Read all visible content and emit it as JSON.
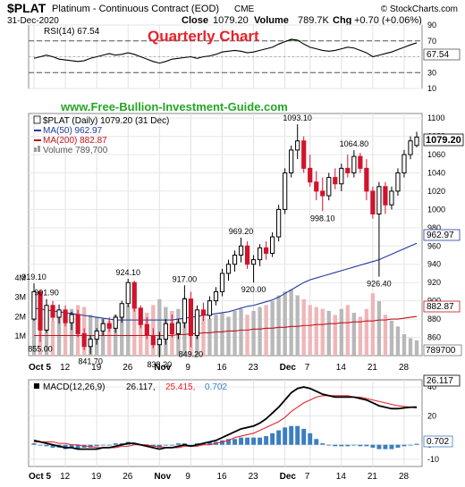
{
  "header": {
    "symbol": "$PLAT",
    "name": "Platinum - Continuous Contract (EOD)",
    "exchange": "CME",
    "watermark": "© StockCharts.com",
    "date": "31-Dec-2020",
    "close_label": "Close",
    "close_value": "1079.20",
    "volume_label": "Volume",
    "volume_value": "789.7K",
    "chg_label": "Chg",
    "chg_value": "+0.70 (+0.06%)"
  },
  "annotation_title": "Quarterly Chart",
  "website": "www.Free-Bullion-Investment-Guide.com",
  "rsi_panel": {
    "label": "RSI(14) 67.54",
    "ticks": [
      "90",
      "70",
      "50",
      "30",
      "10"
    ],
    "last_value": "67.54"
  },
  "price_panel": {
    "legend_title": "$PLAT (Daily) 1079.20 (31 Dec)",
    "ma50_label": "MA(50) 962.97",
    "ma200_label": "MA(200) 882.87",
    "volume_label": "Volume 789,700",
    "y_ticks": [
      "1100",
      "1080",
      "1060",
      "1040",
      "1020",
      "1000",
      "980",
      "960",
      "940",
      "920",
      "900",
      "880",
      "860"
    ],
    "last_price_label": "1079.20",
    "ma50_last_label": "962.97",
    "ma200_last_label": "882.87",
    "volume_last_label": "789700",
    "volume_ticks": [
      "4M",
      "3M",
      "2M",
      "1M"
    ],
    "annotations": [
      {
        "text": "919.10",
        "index": 0,
        "pos": "above"
      },
      {
        "text": "901.90",
        "index": 2,
        "pos": "above"
      },
      {
        "text": "855.00",
        "index": 1,
        "pos": "below"
      },
      {
        "text": "841.70",
        "index": 9,
        "pos": "below"
      },
      {
        "text": "924.10",
        "index": 15,
        "pos": "above"
      },
      {
        "text": "917.00",
        "index": 24,
        "pos": "above"
      },
      {
        "text": "838.20",
        "index": 20,
        "pos": "below"
      },
      {
        "text": "849.20",
        "index": 25,
        "pos": "below"
      },
      {
        "text": "969.20",
        "index": 33,
        "pos": "above"
      },
      {
        "text": "920.00",
        "index": 35,
        "pos": "below"
      },
      {
        "text": "1093.10",
        "index": 42,
        "pos": "above"
      },
      {
        "text": "998.10",
        "index": 46,
        "pos": "below"
      },
      {
        "text": "1064.80",
        "index": 51,
        "pos": "above"
      },
      {
        "text": "926.40",
        "index": 55,
        "pos": "below"
      }
    ]
  },
  "macd_panel": {
    "label_prefix": "MACD(12,26,9)",
    "macd_value": "26.117,",
    "signal_value": "25.415,",
    "hist_value": "0.702",
    "ticks": [
      "40",
      "20",
      "0",
      "-10"
    ],
    "macd_last_label": "26.117",
    "hist_last_label": "0.702"
  },
  "x_axis": {
    "labels": [
      {
        "text": "Oct 5",
        "index": 0
      },
      {
        "text": "12",
        "index": 5
      },
      {
        "text": "19",
        "index": 10
      },
      {
        "text": "26",
        "index": 15
      },
      {
        "text": "Nov",
        "index": 20
      },
      {
        "text": "9",
        "index": 25
      },
      {
        "text": "16",
        "index": 30
      },
      {
        "text": "23",
        "index": 35
      },
      {
        "text": "Dec",
        "index": 40
      },
      {
        "text": "7",
        "index": 44
      },
      {
        "text": "14",
        "index": 49
      },
      {
        "text": "21",
        "index": 54
      },
      {
        "text": "28",
        "index": 59
      }
    ]
  },
  "colors": {
    "up": "#000000",
    "down": "#d0142c",
    "ma50": "#1f3a9e",
    "ma200": "#c0141c",
    "annotation_red": "#e8222a",
    "website_green": "#22a822",
    "macd_line": "#000000",
    "signal_line": "#e8222a",
    "hist": "#3a7fc1"
  },
  "chart_data": [
    {
      "type": "line",
      "title": "RSI(14) 67.54",
      "series": [
        {
          "name": "RSI(14)",
          "values": [
            48,
            50,
            52,
            50,
            47,
            46,
            45,
            44,
            45,
            48,
            50,
            52,
            54,
            52,
            53,
            55,
            53,
            50,
            47,
            44,
            42,
            44,
            47,
            48,
            49,
            50,
            48,
            50,
            51,
            53,
            56,
            57,
            58,
            57,
            55,
            56,
            58,
            60,
            62,
            66,
            69,
            72,
            71,
            66,
            62,
            60,
            58,
            57,
            58,
            60,
            62,
            61,
            58,
            55,
            50,
            52,
            54,
            56,
            59,
            62,
            65,
            67.54
          ]
        }
      ],
      "ylim": [
        10,
        90
      ],
      "reference_lines": [
        70,
        30
      ]
    },
    {
      "type": "candlestick",
      "title": "$PLAT (Daily) 1079.20 (31 Dec)",
      "ohlc": [
        [
          880,
          919.1,
          878,
          910
        ],
        [
          910,
          912,
          855,
          868
        ],
        [
          868,
          901.9,
          865,
          895
        ],
        [
          895,
          900,
          878,
          882
        ],
        [
          882,
          896,
          875,
          890
        ],
        [
          890,
          895,
          872,
          876
        ],
        [
          876,
          888,
          868,
          885
        ],
        [
          885,
          890,
          860,
          864
        ],
        [
          864,
          870,
          846,
          850
        ],
        [
          850,
          862,
          841.7,
          858
        ],
        [
          858,
          870,
          852,
          867
        ],
        [
          867,
          880,
          862,
          875
        ],
        [
          875,
          882,
          866,
          870
        ],
        [
          870,
          885,
          865,
          882
        ],
        [
          882,
          900,
          876,
          897
        ],
        [
          897,
          924.1,
          893,
          920
        ],
        [
          920,
          922,
          888,
          892
        ],
        [
          892,
          895,
          870,
          874
        ],
        [
          874,
          882,
          858,
          862
        ],
        [
          862,
          870,
          848,
          852
        ],
        [
          852,
          866,
          838.2,
          858
        ],
        [
          858,
          880,
          852,
          875
        ],
        [
          875,
          885,
          860,
          864
        ],
        [
          864,
          880,
          858,
          876
        ],
        [
          876,
          917,
          870,
          902
        ],
        [
          902,
          910,
          849.2,
          862
        ],
        [
          862,
          895,
          858,
          890
        ],
        [
          890,
          898,
          878,
          884
        ],
        [
          884,
          905,
          880,
          900
        ],
        [
          900,
          915,
          895,
          910
        ],
        [
          910,
          935,
          905,
          930
        ],
        [
          930,
          945,
          922,
          940
        ],
        [
          940,
          955,
          932,
          950
        ],
        [
          950,
          969.2,
          942,
          960
        ],
        [
          960,
          965,
          935,
          940
        ],
        [
          940,
          950,
          920,
          945
        ],
        [
          945,
          962,
          938,
          958
        ],
        [
          958,
          965,
          945,
          952
        ],
        [
          952,
          975,
          948,
          970
        ],
        [
          970,
          1005,
          965,
          1000
        ],
        [
          1000,
          1045,
          995,
          1040
        ],
        [
          1040,
          1070,
          1035,
          1065
        ],
        [
          1065,
          1093.1,
          1055,
          1075
        ],
        [
          1075,
          1080,
          1040,
          1045
        ],
        [
          1045,
          1060,
          1025,
          1030
        ],
        [
          1030,
          1042,
          1010,
          1020
        ],
        [
          1020,
          1035,
          998.1,
          1015
        ],
        [
          1015,
          1040,
          1010,
          1035
        ],
        [
          1035,
          1045,
          1022,
          1028
        ],
        [
          1028,
          1050,
          1020,
          1045
        ],
        [
          1045,
          1060,
          1035,
          1040
        ],
        [
          1040,
          1064.8,
          1035,
          1058
        ],
        [
          1058,
          1062,
          1040,
          1045
        ],
        [
          1045,
          1055,
          1010,
          1020
        ],
        [
          1020,
          1025,
          990,
          995
        ],
        [
          995,
          1030,
          926.4,
          1025
        ],
        [
          1025,
          1030,
          995,
          1005
        ],
        [
          1005,
          1025,
          1000,
          1020
        ],
        [
          1020,
          1045,
          1015,
          1040
        ],
        [
          1040,
          1065,
          1035,
          1060
        ],
        [
          1060,
          1080,
          1055,
          1075
        ],
        [
          1070,
          1085,
          1068,
          1079.2
        ]
      ],
      "ma50": [
        892,
        891,
        890,
        889,
        888,
        887,
        886,
        885,
        884,
        883,
        882,
        881,
        880,
        879,
        879,
        879,
        879,
        879,
        879,
        879,
        879,
        879,
        879,
        880,
        881,
        882,
        883,
        884,
        885,
        886,
        887,
        888,
        890,
        892,
        894,
        895,
        897,
        899,
        901,
        904,
        908,
        912,
        916,
        920,
        923,
        925,
        927,
        929,
        931,
        933,
        935,
        937,
        939,
        941,
        943,
        945,
        948,
        951,
        954,
        957,
        960,
        962.97
      ],
      "ma200": [
        862,
        862,
        862,
        862,
        862,
        862,
        862,
        862,
        862,
        862,
        862,
        862,
        862,
        862,
        862,
        862,
        862,
        862,
        862,
        862,
        862,
        862,
        862,
        863,
        863,
        864,
        864,
        865,
        865,
        866,
        866,
        867,
        867,
        868,
        868,
        869,
        869,
        870,
        870,
        871,
        871,
        872,
        872,
        873,
        873,
        874,
        874,
        875,
        875,
        876,
        876,
        877,
        877,
        878,
        878,
        879,
        879,
        880,
        880,
        881,
        882,
        882.87
      ],
      "ylim": [
        840,
        1105
      ]
    },
    {
      "type": "bar",
      "title": "Volume 789,700",
      "values": [
        2800000,
        2300000,
        2400000,
        1800000,
        2000000,
        2200000,
        2400000,
        2600000,
        2500000,
        2100000,
        2000000,
        1900000,
        1800000,
        2100000,
        2300000,
        2600000,
        2800000,
        2400000,
        2200000,
        2600000,
        2900000,
        2500000,
        2300000,
        2400000,
        3000000,
        2700000,
        2200000,
        2000000,
        1900000,
        2100000,
        2200000,
        2000000,
        2300000,
        2400000,
        2100000,
        2300000,
        2500000,
        2600000,
        2800000,
        3100000,
        3300000,
        3400000,
        3100000,
        2900000,
        2600000,
        2500000,
        2400000,
        2300000,
        2100000,
        2400000,
        2600000,
        2200000,
        2000000,
        2400000,
        3200000,
        2800000,
        2100000,
        1800000,
        1500000,
        1100000,
        900000,
        789700
      ],
      "ylim": [
        0,
        4500000
      ]
    },
    {
      "type": "line",
      "title": "MACD(12,26,9) 26.117, 25.415, 0.702",
      "series": [
        {
          "name": "MACD",
          "values": [
            3,
            2,
            1,
            0,
            -1,
            -2,
            -2,
            -3,
            -3,
            -3,
            -3,
            -2,
            -2,
            -1,
            0,
            1,
            1,
            0,
            -1,
            -2,
            -3,
            -2,
            -2,
            -1,
            0,
            -1,
            0,
            1,
            2,
            3,
            5,
            7,
            9,
            11,
            12,
            13,
            15,
            18,
            22,
            26,
            31,
            36,
            39,
            40,
            39,
            37,
            35,
            34,
            33,
            33,
            33,
            33,
            32,
            31,
            29,
            27,
            26,
            25,
            25,
            25.5,
            26,
            26.117
          ]
        },
        {
          "name": "Signal",
          "values": [
            2,
            2,
            2,
            2,
            1,
            1,
            0,
            0,
            -1,
            -1,
            -2,
            -2,
            -2,
            -2,
            -1,
            -1,
            0,
            0,
            0,
            -1,
            -1,
            -2,
            -2,
            -2,
            -1,
            -1,
            -1,
            0,
            0,
            1,
            2,
            3,
            5,
            6,
            7,
            8,
            10,
            12,
            14,
            16,
            19,
            23,
            26,
            29,
            31,
            33,
            34,
            34,
            34,
            34,
            34,
            33,
            33,
            32,
            31,
            30,
            29,
            28,
            27,
            26.5,
            26,
            25.415
          ]
        },
        {
          "name": "Histogram",
          "values": [
            1,
            0,
            -1,
            -2,
            -2,
            -3,
            -2,
            -3,
            -2,
            -2,
            -1,
            0,
            0,
            1,
            1,
            2,
            1,
            0,
            -1,
            -1,
            -2,
            0,
            0,
            1,
            1,
            0,
            1,
            1,
            2,
            2,
            3,
            4,
            4,
            5,
            5,
            5,
            5,
            6,
            8,
            10,
            12,
            13,
            13,
            11,
            8,
            4,
            1,
            0,
            -1,
            -1,
            -1,
            0,
            -1,
            -1,
            -2,
            -3,
            -3,
            -3,
            -2,
            -1,
            0,
            0.702
          ]
        }
      ],
      "ylim": [
        -15,
        45
      ]
    }
  ]
}
